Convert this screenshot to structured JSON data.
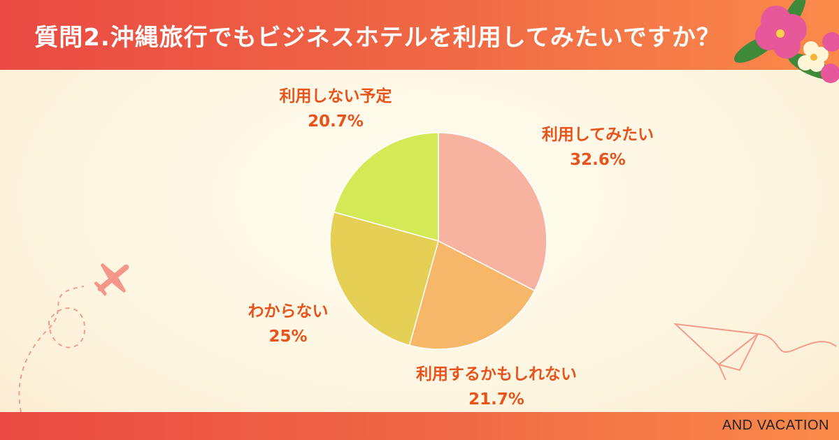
{
  "title": "質問2.沖縄旅行でもビジネスホテルを利用してみたいですか？",
  "brand": "AND VACATION",
  "chart_data": {
    "type": "pie",
    "start_angle_deg": 0,
    "direction": "clockwise",
    "slices": [
      {
        "label": "利用してみたい",
        "value": 32.6,
        "value_label": "32.6%",
        "color": "#f8b3a0"
      },
      {
        "label": "利用するかもしれない",
        "value": 21.7,
        "value_label": "21.7%",
        "color": "#f6b868"
      },
      {
        "label": "わからない",
        "value": 25,
        "value_label": "25%",
        "color": "#e5cf55"
      },
      {
        "label": "利用しない予定",
        "value": 20.7,
        "value_label": "20.7%",
        "color": "#d3ea56"
      }
    ]
  },
  "colors": {
    "header": "#ea4a43",
    "label_text": "#e8531c",
    "decor": "#f39c8c"
  }
}
